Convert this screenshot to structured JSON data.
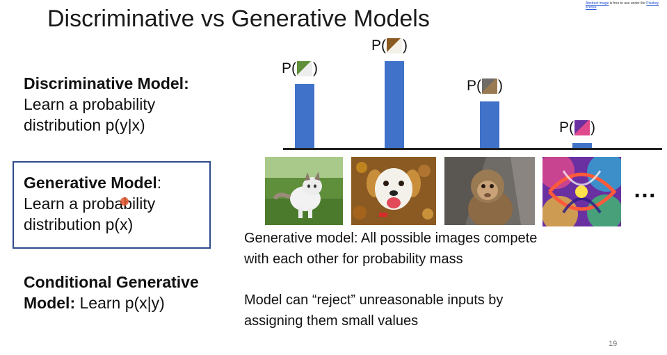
{
  "credit": {
    "link1": "Abstract image",
    "text": "is free to use under the",
    "link2": "Pixabay license"
  },
  "title": "Discriminative vs Generative Models",
  "definitions": {
    "discriminative": {
      "heading": "Discriminative Model:",
      "line1": "Learn a probability",
      "line2": "distribution p(y|x)"
    },
    "generative": {
      "heading": "Generative Model",
      "colon": ":",
      "line1": "Learn a probability",
      "line2": "distribution p(x)"
    },
    "conditional": {
      "heading_line1": "Conditional Generative",
      "heading_line2": "Model:",
      "rest": " Learn p(x|y)"
    }
  },
  "chart_data": {
    "type": "bar",
    "categories": [
      "cat",
      "dog",
      "monkey",
      "abstract"
    ],
    "values": [
      0.8,
      1.08,
      0.58,
      0.07
    ],
    "ylim": [
      0,
      1.2
    ],
    "labels": [
      {
        "prefix": "P(",
        "suffix": ")"
      },
      {
        "prefix": "P(",
        "suffix": ")"
      },
      {
        "prefix": "P(",
        "suffix": ")"
      },
      {
        "prefix": "P(",
        "suffix": ")"
      }
    ],
    "bar_color": "#3f72c8"
  },
  "images": [
    "cat",
    "dog",
    "monkey",
    "abstract"
  ],
  "ellipsis": "…",
  "captions": {
    "caption1": [
      "Generative model: All possible images compete",
      "with each other for probability mass"
    ],
    "caption2": [
      "Model can “reject” unreasonable inputs by",
      "assigning them small values"
    ]
  },
  "page_number": "19",
  "colors": {
    "bar": "#3f72c8",
    "box_border": "#2f4a8c",
    "cursor": "#e2572f"
  }
}
